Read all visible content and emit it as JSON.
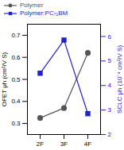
{
  "chart_data": {
    "type": "line",
    "categories": [
      "2F",
      "3F",
      "4F"
    ],
    "series": [
      {
        "name": "Polymer",
        "color": "#555555",
        "marker": "circle",
        "values": [
          0.325,
          0.37,
          0.62
        ]
      },
      {
        "name": "Polymer:PC₇₁BM",
        "color": "#2222cc",
        "marker": "square",
        "axis": "y2",
        "values": [
          4.5,
          5.85,
          2.85
        ]
      }
    ],
    "ylabel": "OFET μh (cm²/V S)",
    "y2label": "SCLC μh (10⁻⁴ cm²/V S)",
    "ylim": [
      0.25,
      0.75
    ],
    "yticks": [
      0.3,
      0.4,
      0.5,
      0.6,
      0.7
    ],
    "y2lim": [
      2.0,
      6.5
    ],
    "y2ticks": [
      2,
      3,
      4,
      5,
      6
    ],
    "legend": "upper left",
    "grid": false
  }
}
